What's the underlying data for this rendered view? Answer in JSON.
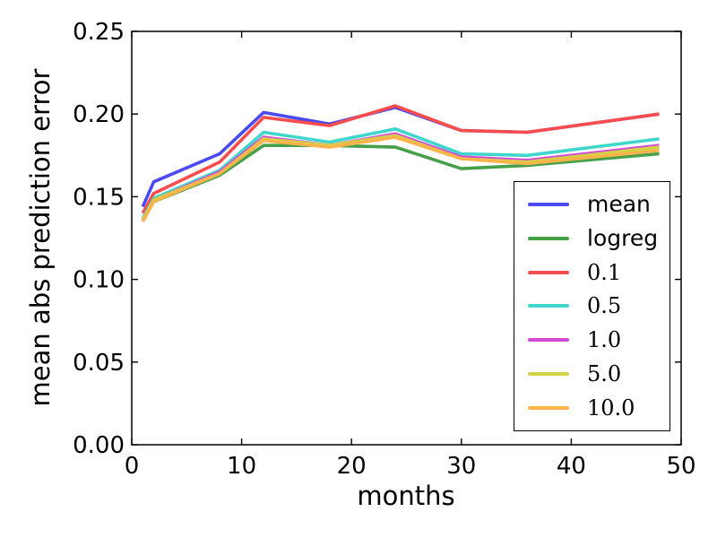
{
  "chart_data": {
    "type": "line",
    "title": "",
    "xlabel": "months",
    "ylabel": "mean abs prediction error",
    "xlim": [
      0,
      50
    ],
    "ylim": [
      0,
      0.25
    ],
    "xtick_values": [
      0,
      10,
      20,
      30,
      40,
      50
    ],
    "xtick_labels": [
      "0",
      "10",
      "20",
      "30",
      "40",
      "50"
    ],
    "ytick_values": [
      0.0,
      0.05,
      0.1,
      0.15,
      0.2,
      0.25
    ],
    "ytick_labels": [
      "0.00",
      "0.05",
      "0.10",
      "0.15",
      "0.20",
      "0.25"
    ],
    "grid": false,
    "legend_position": "center right inside",
    "x": [
      1,
      2,
      8,
      12,
      18,
      24,
      30,
      36,
      48
    ],
    "series": [
      {
        "name": "mean",
        "color": "#4a4af0",
        "values": [
          0.144,
          0.159,
          0.176,
          0.201,
          0.194,
          0.204,
          0.19,
          0.189,
          0.2
        ]
      },
      {
        "name": "logreg",
        "color": "#45a049",
        "values": [
          0.136,
          0.147,
          0.163,
          0.181,
          0.181,
          0.18,
          0.167,
          0.169,
          0.176
        ]
      },
      {
        "name": "0.1",
        "color": "#f94d4d",
        "values": [
          0.14,
          0.152,
          0.171,
          0.198,
          0.193,
          0.205,
          0.19,
          0.189,
          0.2
        ]
      },
      {
        "name": "0.5",
        "color": "#41d6cc",
        "values": [
          0.137,
          0.149,
          0.166,
          0.189,
          0.183,
          0.191,
          0.176,
          0.175,
          0.185
        ]
      },
      {
        "name": "1.0",
        "color": "#d44ad8",
        "values": [
          0.136,
          0.148,
          0.165,
          0.186,
          0.181,
          0.188,
          0.174,
          0.172,
          0.181
        ]
      },
      {
        "name": "5.0",
        "color": "#d2d246",
        "values": [
          0.136,
          0.148,
          0.164,
          0.185,
          0.181,
          0.187,
          0.173,
          0.171,
          0.18
        ]
      },
      {
        "name": "10.0",
        "color": "#fbb34a",
        "values": [
          0.135,
          0.147,
          0.164,
          0.184,
          0.18,
          0.186,
          0.173,
          0.17,
          0.178
        ]
      }
    ],
    "axis_color": "#000000",
    "background_color": "#ffffff",
    "line_width": 3.6
  }
}
